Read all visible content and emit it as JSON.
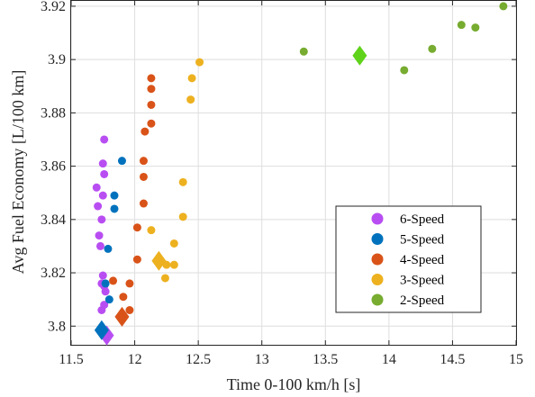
{
  "chart_data": {
    "type": "scatter",
    "title": "",
    "xlabel": "Time 0-100 km/h [s]",
    "ylabel": "Avg Fuel Economy [L/100 km]",
    "xlim": [
      11.5,
      15
    ],
    "ylim": [
      3.793,
      3.922
    ],
    "xticks": [
      11.5,
      12,
      12.5,
      13,
      13.5,
      14,
      14.5,
      15
    ],
    "xtick_labels": [
      "11.5",
      "12",
      "12.5",
      "13",
      "13.5",
      "14",
      "14.5",
      "15"
    ],
    "yticks": [
      3.8,
      3.82,
      3.84,
      3.86,
      3.88,
      3.9,
      3.92
    ],
    "ytick_labels": [
      "3.8",
      "3.82",
      "3.84",
      "3.86",
      "3.88",
      "3.9",
      "3.92"
    ],
    "grid": true,
    "legend_position": "bottom-right",
    "series": [
      {
        "name": "6-Speed",
        "color": "#b84ef2",
        "points": [
          [
            11.76,
            3.87
          ],
          [
            11.75,
            3.861
          ],
          [
            11.76,
            3.857
          ],
          [
            11.7,
            3.852
          ],
          [
            11.75,
            3.849
          ],
          [
            11.71,
            3.845
          ],
          [
            11.74,
            3.84
          ],
          [
            11.72,
            3.834
          ],
          [
            11.73,
            3.83
          ],
          [
            11.75,
            3.819
          ],
          [
            11.74,
            3.816
          ],
          [
            11.76,
            3.815
          ],
          [
            11.77,
            3.813
          ],
          [
            11.76,
            3.808
          ],
          [
            11.74,
            3.806
          ]
        ],
        "mean": [
          11.78,
          3.7965
        ]
      },
      {
        "name": "5-Speed",
        "color": "#0072bd",
        "points": [
          [
            11.9,
            3.862
          ],
          [
            11.84,
            3.849
          ],
          [
            11.84,
            3.844
          ],
          [
            11.79,
            3.829
          ],
          [
            11.77,
            3.816
          ],
          [
            11.8,
            3.81
          ]
        ],
        "mean": [
          11.74,
          3.7985
        ]
      },
      {
        "name": "4-Speed",
        "color": "#d95319",
        "points": [
          [
            12.13,
            3.893
          ],
          [
            12.13,
            3.889
          ],
          [
            12.13,
            3.883
          ],
          [
            12.13,
            3.876
          ],
          [
            12.08,
            3.873
          ],
          [
            12.07,
            3.862
          ],
          [
            12.07,
            3.856
          ],
          [
            12.07,
            3.846
          ],
          [
            12.02,
            3.837
          ],
          [
            12.02,
            3.825
          ],
          [
            11.83,
            3.817
          ],
          [
            11.96,
            3.816
          ],
          [
            11.91,
            3.811
          ],
          [
            11.96,
            3.806
          ]
        ],
        "mean": [
          11.9,
          3.8035
        ]
      },
      {
        "name": "3-Speed",
        "color": "#edb120",
        "points": [
          [
            12.51,
            3.899
          ],
          [
            12.45,
            3.893
          ],
          [
            12.44,
            3.885
          ],
          [
            12.38,
            3.854
          ],
          [
            12.38,
            3.841
          ],
          [
            12.13,
            3.836
          ],
          [
            12.31,
            3.831
          ],
          [
            12.25,
            3.823
          ],
          [
            12.31,
            3.823
          ],
          [
            12.24,
            3.818
          ]
        ],
        "mean": [
          12.19,
          3.8245
        ]
      },
      {
        "name": "2-Speed",
        "color": "#77ac30",
        "points": [
          [
            14.9,
            3.92
          ],
          [
            14.57,
            3.913
          ],
          [
            14.68,
            3.912
          ],
          [
            14.34,
            3.904
          ],
          [
            13.33,
            3.903
          ],
          [
            14.12,
            3.896
          ]
        ],
        "mean": [
          13.77,
          3.9015
        ],
        "mean_color": "#5fd21a"
      }
    ]
  }
}
